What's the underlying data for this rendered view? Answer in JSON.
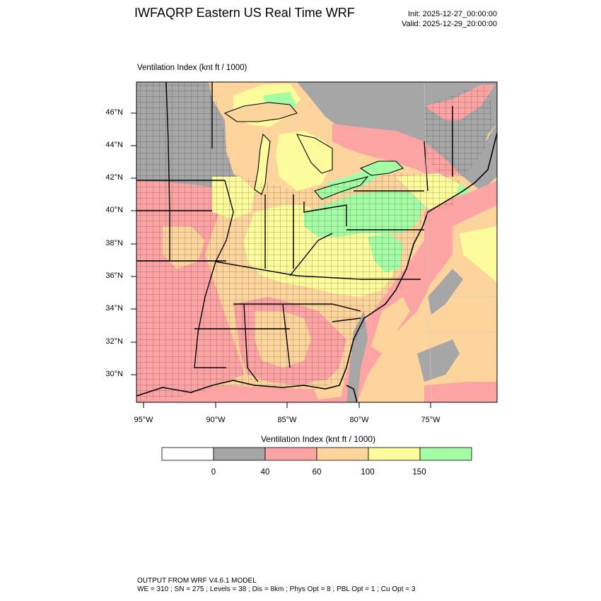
{
  "header": {
    "title": "IWFAQRP Eastern US Real Time WRF",
    "init": "Init: 2025-12-27_00:00:00",
    "valid": "Valid: 2025-12-29_20:00:00"
  },
  "map": {
    "field_title": "Ventilation Index   (knt ft / 1000)",
    "lat_labels": [
      "46°N",
      "44°N",
      "42°N",
      "40°N",
      "38°N",
      "36°N",
      "34°N",
      "32°N",
      "30°N"
    ],
    "lon_labels": [
      "95°W",
      "90°W",
      "85°W",
      "80°W",
      "75°W"
    ]
  },
  "colorbar": {
    "title": "Ventilation Index  (knt ft / 1000)",
    "levels": [
      "0",
      "40",
      "60",
      "100",
      "150"
    ],
    "colors": [
      "#ffffff",
      "#a6a6a6",
      "#fca4a4",
      "#fcd49c",
      "#fcfc9c",
      "#a4fca4"
    ]
  },
  "footer": {
    "line1": "OUTPUT FROM WRF V4.6.1 MODEL",
    "line2": "WE = 310 ; SN = 275 ; Levels = 38 ; Dis = 8km ; Phys Opt = 8 ; PBL Opt = 1 ; Cu Opt = 3"
  }
}
